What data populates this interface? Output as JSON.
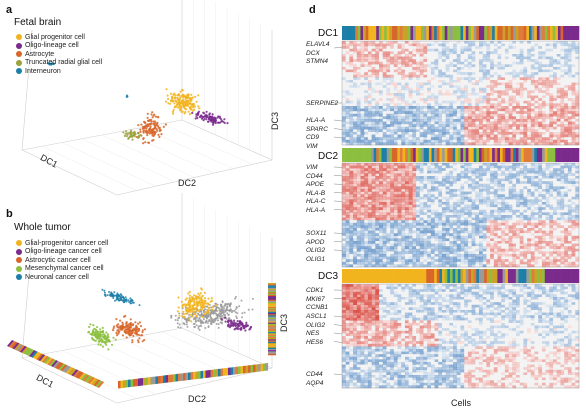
{
  "panel_a": {
    "letter": "a",
    "title": "Fetal brain",
    "legend": [
      {
        "label": "Glial progenitor cell",
        "color": "#f2b41e"
      },
      {
        "label": "Oligo-lineage cell",
        "color": "#7a2b8c"
      },
      {
        "label": "Astrocyte",
        "color": "#d8662a"
      },
      {
        "label": "Truncated radial glial cell",
        "color": "#9aa23c"
      },
      {
        "label": "Interneuron",
        "color": "#1c7fa8"
      }
    ],
    "axes": {
      "x": "DC1",
      "y": "DC2",
      "z": "DC3"
    }
  },
  "panel_b": {
    "letter": "b",
    "title": "Whole tumor",
    "legend": [
      {
        "label": "Glial-progenitor cancer cell",
        "color": "#f2b41e"
      },
      {
        "label": "Oligo-lineage cancer cell",
        "color": "#7a2b8c"
      },
      {
        "label": "Astrocytic cancer cell",
        "color": "#d8662a"
      },
      {
        "label": "Mesenchymal cancer cell",
        "color": "#8cbf3f"
      },
      {
        "label": "Neuronal cancer cell",
        "color": "#1c7fa8"
      }
    ],
    "axes": {
      "x": "DC1",
      "y": "DC2",
      "z": "DC3"
    }
  },
  "panel_d": {
    "letter": "d",
    "x_label": "Cells",
    "blocks": [
      {
        "name": "DC1",
        "genes_top": [
          "ELAVL4",
          "DCX",
          "STMN4"
        ],
        "genes_mid": [
          "SERPINE2"
        ],
        "genes_bottom": [
          "HLA-A",
          "SPARC",
          "CD9",
          "VIM"
        ]
      },
      {
        "name": "DC2",
        "genes_top": [
          "VIM",
          "CD44",
          "APOE",
          "HLA-B",
          "HLA-C",
          "HLA-A"
        ],
        "genes_mid": [
          "SOX11",
          "APOD",
          "OLIG2",
          "OLIG1"
        ],
        "genes_bottom": []
      },
      {
        "name": "DC3",
        "genes_top": [
          "CDK1",
          "MKI67",
          "CCNB1",
          "ASCL1",
          "OLIG2",
          "NES",
          "HES6"
        ],
        "genes_mid": [],
        "genes_bottom": [
          "CD44",
          "AQP4"
        ]
      }
    ]
  },
  "colors": {
    "heat_low": "#2f6fb4",
    "heat_mid": "#f2f2f2",
    "heat_high": "#d63a2f",
    "noise_gray": "#9a9a9a"
  }
}
